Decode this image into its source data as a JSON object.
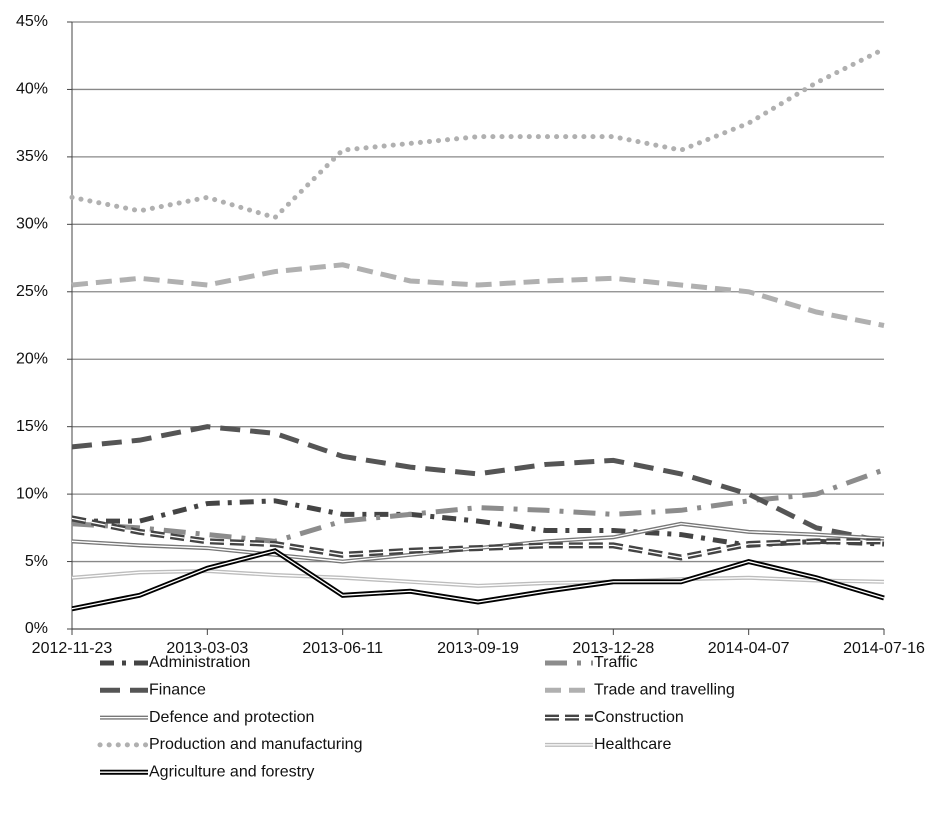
{
  "chart_data": {
    "type": "line",
    "x": [
      "2012-11-23",
      "2013-01-12",
      "2013-03-03",
      "2013-04-22",
      "2013-06-11",
      "2013-07-31",
      "2013-09-19",
      "2013-11-08",
      "2013-12-28",
      "2014-02-16",
      "2014-04-07",
      "2014-05-27",
      "2014-07-16"
    ],
    "xlim": [
      "2012-11-23",
      "2014-07-16"
    ],
    "xticks": [
      "2012-11-23",
      "2013-03-03",
      "2013-06-11",
      "2013-09-19",
      "2013-12-28",
      "2014-04-07",
      "2014-07-16"
    ],
    "ylim": [
      0,
      45
    ],
    "yticks": [
      {
        "value": 0,
        "label": "0%"
      },
      {
        "value": 5,
        "label": "5%"
      },
      {
        "value": 10,
        "label": "10%"
      },
      {
        "value": 15,
        "label": "15%"
      },
      {
        "value": 20,
        "label": "20%"
      },
      {
        "value": 25,
        "label": "25%"
      },
      {
        "value": 30,
        "label": "30%"
      },
      {
        "value": 35,
        "label": "35%"
      },
      {
        "value": 40,
        "label": "40%"
      },
      {
        "value": 45,
        "label": "45%"
      }
    ],
    "grid": true,
    "series": [
      {
        "name": "Administration",
        "color": "#444444",
        "dash": "14 8 4 8",
        "width": 5,
        "values": [
          8,
          8,
          9.3,
          9.5,
          8.5,
          8.5,
          8,
          7.3,
          7.3,
          7,
          6.2,
          6.5,
          6.3
        ]
      },
      {
        "name": "Traffic",
        "color": "#8c8c8c",
        "dash": "22 10 4 10",
        "width": 5,
        "values": [
          7.8,
          7.5,
          7,
          6.5,
          8,
          8.5,
          9,
          8.8,
          8.5,
          8.8,
          9.5,
          10,
          11.8
        ]
      },
      {
        "name": "Finance",
        "color": "#555555",
        "dash": "20 10",
        "width": 5,
        "values": [
          13.5,
          14,
          15,
          14.5,
          12.8,
          12,
          11.5,
          12.2,
          12.5,
          11.5,
          10,
          7.5,
          6.5
        ]
      },
      {
        "name": "Trade and travelling",
        "color": "#b0b0b0",
        "dash": "16 8",
        "width": 5,
        "values": [
          25.5,
          26,
          25.5,
          26.5,
          27,
          25.8,
          25.5,
          25.8,
          26,
          25.5,
          25,
          23.5,
          22.5
        ]
      },
      {
        "name": "Defence and protection",
        "color": "#777777",
        "dash": "",
        "width": 4,
        "double": true,
        "values": [
          6.5,
          6.2,
          6,
          5.5,
          5,
          5.5,
          6,
          6.5,
          6.8,
          7.8,
          7.2,
          7,
          6.7
        ]
      },
      {
        "name": "Construction",
        "color": "#444444",
        "dash": "14 6",
        "width": 6,
        "double": true,
        "values": [
          8.2,
          7.2,
          6.5,
          6.3,
          5.5,
          5.8,
          6,
          6.2,
          6.2,
          5.3,
          6.3,
          6.5,
          6.5
        ]
      },
      {
        "name": "Production and manufacturing",
        "color": "#b0b0b0",
        "dash": "0.1 9",
        "width": 5,
        "values": [
          32,
          31,
          32,
          30.5,
          35.5,
          36,
          36.5,
          36.5,
          36.5,
          35.5,
          37.5,
          40.5,
          43
        ]
      },
      {
        "name": "Healthcare",
        "color": "#bdbdbd",
        "dash": "",
        "width": 4,
        "double": true,
        "values": [
          3.8,
          4.2,
          4.3,
          4,
          3.8,
          3.5,
          3.2,
          3.4,
          3.5,
          3.7,
          3.8,
          3.6,
          3.5
        ]
      },
      {
        "name": "Agriculture and forestry",
        "color": "#000000",
        "dash": "",
        "width": 5,
        "double": true,
        "values": [
          1.5,
          2.5,
          4.5,
          5.8,
          2.5,
          2.8,
          2,
          2.8,
          3.5,
          3.5,
          5,
          3.8,
          2.3
        ]
      }
    ]
  }
}
